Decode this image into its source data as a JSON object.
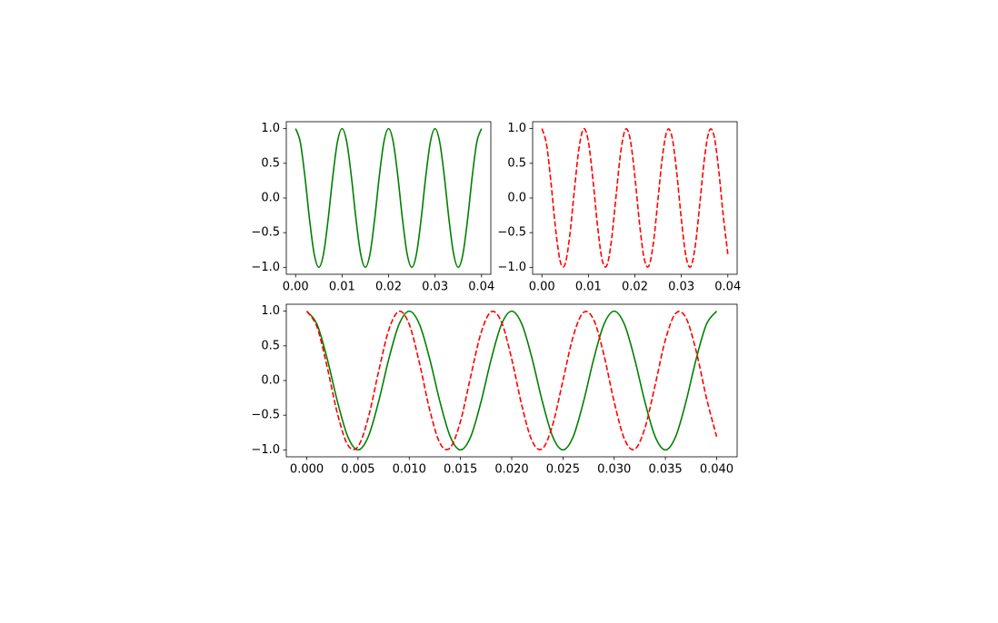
{
  "chart_data": [
    {
      "type": "line",
      "x": [
        0,
        0.001,
        0.002,
        0.003,
        0.004,
        0.005,
        0.006,
        0.007,
        0.008,
        0.009,
        0.01,
        0.011,
        0.012,
        0.013,
        0.014,
        0.015,
        0.016,
        0.017,
        0.018,
        0.019,
        0.02,
        0.021,
        0.022,
        0.023,
        0.024,
        0.025,
        0.026,
        0.027,
        0.028,
        0.029,
        0.03,
        0.031,
        0.032,
        0.033,
        0.034,
        0.035,
        0.036,
        0.037,
        0.038,
        0.039,
        0.04
      ],
      "series": [
        {
          "color": "#008000",
          "dash": false,
          "values": [
            1,
            0.809,
            0.309,
            -0.309,
            -0.809,
            -1,
            -0.809,
            -0.309,
            0.309,
            0.809,
            1,
            0.809,
            0.309,
            -0.309,
            -0.809,
            -1,
            -0.809,
            -0.309,
            0.309,
            0.809,
            1,
            0.809,
            0.309,
            -0.309,
            -0.809,
            -1,
            -0.809,
            -0.309,
            0.309,
            0.809,
            1,
            0.809,
            0.309,
            -0.309,
            -0.809,
            -1,
            -0.809,
            -0.309,
            0.309,
            0.809,
            1
          ]
        }
      ],
      "xlim": [
        -0.002,
        0.042
      ],
      "ylim": [
        -1.1,
        1.1
      ],
      "xticks": [
        {
          "value": 0,
          "label": "0.00"
        },
        {
          "value": 0.01,
          "label": "0.01"
        },
        {
          "value": 0.02,
          "label": "0.02"
        },
        {
          "value": 0.03,
          "label": "0.03"
        },
        {
          "value": 0.04,
          "label": "0.04"
        }
      ],
      "yticks": [
        {
          "value": -1,
          "label": "−1.0"
        },
        {
          "value": -0.5,
          "label": "−0.5"
        },
        {
          "value": 0,
          "label": "0.0"
        },
        {
          "value": 0.5,
          "label": "0.5"
        },
        {
          "value": 1,
          "label": "1.0"
        }
      ]
    },
    {
      "type": "line",
      "x": [
        0,
        0.001,
        0.002,
        0.003,
        0.004,
        0.005,
        0.006,
        0.007,
        0.008,
        0.009,
        0.01,
        0.011,
        0.012,
        0.013,
        0.014,
        0.015,
        0.016,
        0.017,
        0.018,
        0.019,
        0.02,
        0.021,
        0.022,
        0.023,
        0.024,
        0.025,
        0.026,
        0.027,
        0.028,
        0.029,
        0.03,
        0.031,
        0.032,
        0.033,
        0.034,
        0.035,
        0.036,
        0.037,
        0.038,
        0.039,
        0.04
      ],
      "series": [
        {
          "color": "#ff0000",
          "dash": true,
          "values": [
            1,
            0.771,
            0.187,
            -0.482,
            -0.93,
            -0.951,
            -0.536,
            0.125,
            0.729,
            0.998,
            0.809,
            0.249,
            -0.426,
            -0.905,
            -0.969,
            -0.588,
            0.063,
            0.685,
            0.992,
            0.844,
            0.309,
            -0.368,
            -0.876,
            -0.982,
            -0.637,
            0,
            0.637,
            0.982,
            0.876,
            0.368,
            -0.309,
            -0.844,
            -0.992,
            -0.685,
            -0.063,
            0.588,
            0.969,
            0.905,
            0.426,
            -0.249,
            -0.809
          ]
        }
      ],
      "xlim": [
        -0.002,
        0.042
      ],
      "ylim": [
        -1.1,
        1.1
      ],
      "xticks": [
        {
          "value": 0,
          "label": "0.00"
        },
        {
          "value": 0.01,
          "label": "0.01"
        },
        {
          "value": 0.02,
          "label": "0.02"
        },
        {
          "value": 0.03,
          "label": "0.03"
        },
        {
          "value": 0.04,
          "label": "0.04"
        }
      ],
      "yticks": [
        {
          "value": -1,
          "label": "−1.0"
        },
        {
          "value": -0.5,
          "label": "−0.5"
        },
        {
          "value": 0,
          "label": "0.0"
        },
        {
          "value": 0.5,
          "label": "0.5"
        },
        {
          "value": 1,
          "label": "1.0"
        }
      ]
    },
    {
      "type": "line",
      "x": [
        0,
        0.001,
        0.002,
        0.003,
        0.004,
        0.005,
        0.006,
        0.007,
        0.008,
        0.009,
        0.01,
        0.011,
        0.012,
        0.013,
        0.014,
        0.015,
        0.016,
        0.017,
        0.018,
        0.019,
        0.02,
        0.021,
        0.022,
        0.023,
        0.024,
        0.025,
        0.026,
        0.027,
        0.028,
        0.029,
        0.03,
        0.031,
        0.032,
        0.033,
        0.034,
        0.035,
        0.036,
        0.037,
        0.038,
        0.039,
        0.04
      ],
      "series": [
        {
          "color": "#008000",
          "dash": false,
          "values": [
            1,
            0.809,
            0.309,
            -0.309,
            -0.809,
            -1,
            -0.809,
            -0.309,
            0.309,
            0.809,
            1,
            0.809,
            0.309,
            -0.309,
            -0.809,
            -1,
            -0.809,
            -0.309,
            0.309,
            0.809,
            1,
            0.809,
            0.309,
            -0.309,
            -0.809,
            -1,
            -0.809,
            -0.309,
            0.309,
            0.809,
            1,
            0.809,
            0.309,
            -0.309,
            -0.809,
            -1,
            -0.809,
            -0.309,
            0.309,
            0.809,
            1
          ]
        },
        {
          "color": "#ff0000",
          "dash": true,
          "values": [
            1,
            0.771,
            0.187,
            -0.482,
            -0.93,
            -0.951,
            -0.536,
            0.125,
            0.729,
            0.998,
            0.809,
            0.249,
            -0.426,
            -0.905,
            -0.969,
            -0.588,
            0.063,
            0.685,
            0.992,
            0.844,
            0.309,
            -0.368,
            -0.876,
            -0.982,
            -0.637,
            0,
            0.637,
            0.982,
            0.876,
            0.368,
            -0.309,
            -0.844,
            -0.992,
            -0.685,
            -0.063,
            0.588,
            0.969,
            0.905,
            0.426,
            -0.249,
            -0.809
          ]
        }
      ],
      "xlim": [
        -0.002,
        0.042
      ],
      "ylim": [
        -1.1,
        1.1
      ],
      "xticks": [
        {
          "value": 0,
          "label": "0.000"
        },
        {
          "value": 0.005,
          "label": "0.005"
        },
        {
          "value": 0.01,
          "label": "0.010"
        },
        {
          "value": 0.015,
          "label": "0.015"
        },
        {
          "value": 0.02,
          "label": "0.020"
        },
        {
          "value": 0.025,
          "label": "0.025"
        },
        {
          "value": 0.03,
          "label": "0.030"
        },
        {
          "value": 0.035,
          "label": "0.035"
        },
        {
          "value": 0.04,
          "label": "0.040"
        }
      ],
      "yticks": [
        {
          "value": -1,
          "label": "−1.0"
        },
        {
          "value": -0.5,
          "label": "−0.5"
        },
        {
          "value": 0,
          "label": "0.0"
        },
        {
          "value": 0.5,
          "label": "0.5"
        },
        {
          "value": 1,
          "label": "1.0"
        }
      ]
    }
  ]
}
